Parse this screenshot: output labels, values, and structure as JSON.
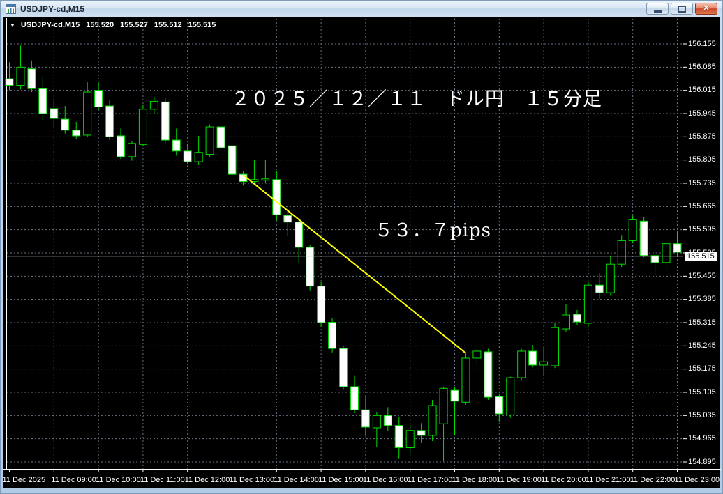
{
  "window": {
    "title": "USDJPY-cd,M15"
  },
  "info_bar": {
    "collapse_icon": "▼",
    "symbol": "USDJPY-cd,M15",
    "open": "155.520",
    "high": "155.527",
    "low": "155.512",
    "close": "155.515"
  },
  "annotations": {
    "heading": "２０２５／１２／１１　ドル円　１５分足",
    "pips_label": "５３．７pips"
  },
  "price_axis": {
    "labels": [
      "156.155",
      "156.085",
      "156.015",
      "155.945",
      "155.875",
      "155.805",
      "155.735",
      "155.665",
      "155.595",
      "155.525",
      "155.455",
      "155.385",
      "155.315",
      "155.245",
      "155.175",
      "155.105",
      "155.035",
      "154.965",
      "154.895"
    ],
    "current": "155.515"
  },
  "time_axis": {
    "labels": [
      "11 Dec 2025",
      "11 Dec 09:00",
      "11 Dec 10:00",
      "11 Dec 11:00",
      "11 Dec 12:00",
      "11 Dec 13:00",
      "11 Dec 14:00",
      "11 Dec 15:00",
      "11 Dec 16:00",
      "11 Dec 17:00",
      "11 Dec 18:00",
      "11 Dec 19:00",
      "11 Dec 20:00",
      "11 Dec 21:00",
      "11 Dec 22:00",
      "11 Dec 23:00"
    ]
  },
  "colors": {
    "background": "#000000",
    "grid": "#697482",
    "candle_outline": "#00e000",
    "bull_fill": "#000000",
    "bear_fill": "#ffffff",
    "trendline": "#ffff00",
    "bid_line": "#bcc0c4",
    "axis_text": "#ffffff",
    "frame": "#ffffff",
    "current_price_bg": "#ffffff",
    "current_price_text": "#000000"
  },
  "chart_data": {
    "type": "candlestick",
    "symbol": "USDJPY-cd",
    "timeframe": "M15",
    "date": "11 Dec 2025",
    "title": "２０２５／１２／１１　ドル円　１５分足",
    "price_axis_max": 156.155,
    "price_axis_min": 154.895,
    "price_step": 0.07,
    "bid_price": 155.515,
    "grid": true,
    "trendline": {
      "from": {
        "time": "13:15",
        "price": 155.76
      },
      "to": {
        "time": "18:15",
        "price": 155.223
      },
      "pips": 53.7
    },
    "candles": [
      {
        "t": "08:00",
        "o": 156.05,
        "h": 156.1,
        "l": 156.015,
        "c": 156.03
      },
      {
        "t": "08:15",
        "o": 156.03,
        "h": 156.15,
        "l": 156.018,
        "c": 156.085
      },
      {
        "t": "08:30",
        "o": 156.08,
        "h": 156.105,
        "l": 156.01,
        "c": 156.02
      },
      {
        "t": "08:45",
        "o": 156.02,
        "h": 156.055,
        "l": 155.925,
        "c": 155.945
      },
      {
        "t": "09:00",
        "o": 155.96,
        "h": 155.99,
        "l": 155.905,
        "c": 155.93
      },
      {
        "t": "09:15",
        "o": 155.928,
        "h": 155.968,
        "l": 155.885,
        "c": 155.895
      },
      {
        "t": "09:30",
        "o": 155.895,
        "h": 155.92,
        "l": 155.868,
        "c": 155.878
      },
      {
        "t": "09:45",
        "o": 155.88,
        "h": 156.04,
        "l": 155.875,
        "c": 156.01
      },
      {
        "t": "10:00",
        "o": 156.015,
        "h": 156.04,
        "l": 155.955,
        "c": 155.965
      },
      {
        "t": "10:15",
        "o": 155.968,
        "h": 155.985,
        "l": 155.865,
        "c": 155.875
      },
      {
        "t": "10:30",
        "o": 155.878,
        "h": 155.9,
        "l": 155.808,
        "c": 155.815
      },
      {
        "t": "10:45",
        "o": 155.815,
        "h": 155.862,
        "l": 155.803,
        "c": 155.855
      },
      {
        "t": "11:00",
        "o": 155.852,
        "h": 155.972,
        "l": 155.846,
        "c": 155.958
      },
      {
        "t": "11:15",
        "o": 155.958,
        "h": 155.996,
        "l": 155.945,
        "c": 155.982
      },
      {
        "t": "11:30",
        "o": 155.98,
        "h": 155.992,
        "l": 155.856,
        "c": 155.865
      },
      {
        "t": "11:45",
        "o": 155.865,
        "h": 155.9,
        "l": 155.818,
        "c": 155.832
      },
      {
        "t": "12:00",
        "o": 155.832,
        "h": 155.853,
        "l": 155.794,
        "c": 155.8
      },
      {
        "t": "12:15",
        "o": 155.8,
        "h": 155.878,
        "l": 155.79,
        "c": 155.828
      },
      {
        "t": "12:30",
        "o": 155.822,
        "h": 155.912,
        "l": 155.815,
        "c": 155.905
      },
      {
        "t": "12:45",
        "o": 155.905,
        "h": 155.912,
        "l": 155.835,
        "c": 155.842
      },
      {
        "t": "13:00",
        "o": 155.848,
        "h": 155.862,
        "l": 155.758,
        "c": 155.762
      },
      {
        "t": "13:15",
        "o": 155.762,
        "h": 155.772,
        "l": 155.728,
        "c": 155.74
      },
      {
        "t": "13:30",
        "o": 155.74,
        "h": 155.806,
        "l": 155.73,
        "c": 155.746
      },
      {
        "t": "13:45",
        "o": 155.744,
        "h": 155.805,
        "l": 155.735,
        "c": 155.748
      },
      {
        "t": "14:00",
        "o": 155.746,
        "h": 155.772,
        "l": 155.622,
        "c": 155.64
      },
      {
        "t": "14:15",
        "o": 155.638,
        "h": 155.655,
        "l": 155.575,
        "c": 155.618
      },
      {
        "t": "14:30",
        "o": 155.618,
        "h": 155.628,
        "l": 155.495,
        "c": 155.542
      },
      {
        "t": "14:45",
        "o": 155.542,
        "h": 155.55,
        "l": 155.412,
        "c": 155.425
      },
      {
        "t": "15:00",
        "o": 155.425,
        "h": 155.438,
        "l": 155.302,
        "c": 155.315
      },
      {
        "t": "15:15",
        "o": 155.316,
        "h": 155.328,
        "l": 155.225,
        "c": 155.237
      },
      {
        "t": "15:30",
        "o": 155.237,
        "h": 155.246,
        "l": 155.112,
        "c": 155.122
      },
      {
        "t": "15:45",
        "o": 155.122,
        "h": 155.156,
        "l": 155.042,
        "c": 155.052
      },
      {
        "t": "16:00",
        "o": 155.052,
        "h": 155.095,
        "l": 154.972,
        "c": 155.0
      },
      {
        "t": "16:15",
        "o": 154.998,
        "h": 155.046,
        "l": 154.939,
        "c": 155.035
      },
      {
        "t": "16:30",
        "o": 155.035,
        "h": 155.06,
        "l": 154.988,
        "c": 155.005
      },
      {
        "t": "16:45",
        "o": 155.005,
        "h": 155.03,
        "l": 154.904,
        "c": 154.938
      },
      {
        "t": "17:00",
        "o": 154.938,
        "h": 155.006,
        "l": 154.922,
        "c": 154.99
      },
      {
        "t": "17:15",
        "o": 154.99,
        "h": 155.012,
        "l": 154.952,
        "c": 154.975
      },
      {
        "t": "17:30",
        "o": 154.975,
        "h": 155.082,
        "l": 154.958,
        "c": 155.065
      },
      {
        "t": "17:45",
        "o": 155.01,
        "h": 155.122,
        "l": 154.897,
        "c": 155.117
      },
      {
        "t": "18:00",
        "o": 155.111,
        "h": 155.12,
        "l": 154.975,
        "c": 155.078
      },
      {
        "t": "18:15",
        "o": 155.075,
        "h": 155.223,
        "l": 155.068,
        "c": 155.208
      },
      {
        "t": "18:30",
        "o": 155.208,
        "h": 155.244,
        "l": 155.19,
        "c": 155.229
      },
      {
        "t": "18:45",
        "o": 155.227,
        "h": 155.236,
        "l": 155.082,
        "c": 155.09
      },
      {
        "t": "19:00",
        "o": 155.092,
        "h": 155.1,
        "l": 155.017,
        "c": 155.04
      },
      {
        "t": "19:15",
        "o": 155.037,
        "h": 155.152,
        "l": 155.028,
        "c": 155.149
      },
      {
        "t": "19:30",
        "o": 155.149,
        "h": 155.236,
        "l": 155.14,
        "c": 155.229
      },
      {
        "t": "19:45",
        "o": 155.229,
        "h": 155.248,
        "l": 155.18,
        "c": 155.187
      },
      {
        "t": "20:00",
        "o": 155.187,
        "h": 155.24,
        "l": 155.155,
        "c": 155.197
      },
      {
        "t": "20:15",
        "o": 155.185,
        "h": 155.313,
        "l": 155.178,
        "c": 155.3
      },
      {
        "t": "20:30",
        "o": 155.296,
        "h": 155.37,
        "l": 155.288,
        "c": 155.338
      },
      {
        "t": "20:45",
        "o": 155.34,
        "h": 155.353,
        "l": 155.308,
        "c": 155.317
      },
      {
        "t": "21:00",
        "o": 155.313,
        "h": 155.437,
        "l": 155.3,
        "c": 155.428
      },
      {
        "t": "21:15",
        "o": 155.428,
        "h": 155.464,
        "l": 155.386,
        "c": 155.405
      },
      {
        "t": "21:30",
        "o": 155.405,
        "h": 155.517,
        "l": 155.396,
        "c": 155.491
      },
      {
        "t": "21:45",
        "o": 155.491,
        "h": 155.579,
        "l": 155.483,
        "c": 155.562
      },
      {
        "t": "22:00",
        "o": 155.562,
        "h": 155.638,
        "l": 155.554,
        "c": 155.625
      },
      {
        "t": "22:15",
        "o": 155.621,
        "h": 155.634,
        "l": 155.512,
        "c": 155.517
      },
      {
        "t": "22:30",
        "o": 155.517,
        "h": 155.538,
        "l": 155.458,
        "c": 155.496
      },
      {
        "t": "22:45",
        "o": 155.496,
        "h": 155.56,
        "l": 155.466,
        "c": 155.553
      },
      {
        "t": "23:00",
        "o": 155.553,
        "h": 155.586,
        "l": 155.515,
        "c": 155.527
      }
    ]
  }
}
